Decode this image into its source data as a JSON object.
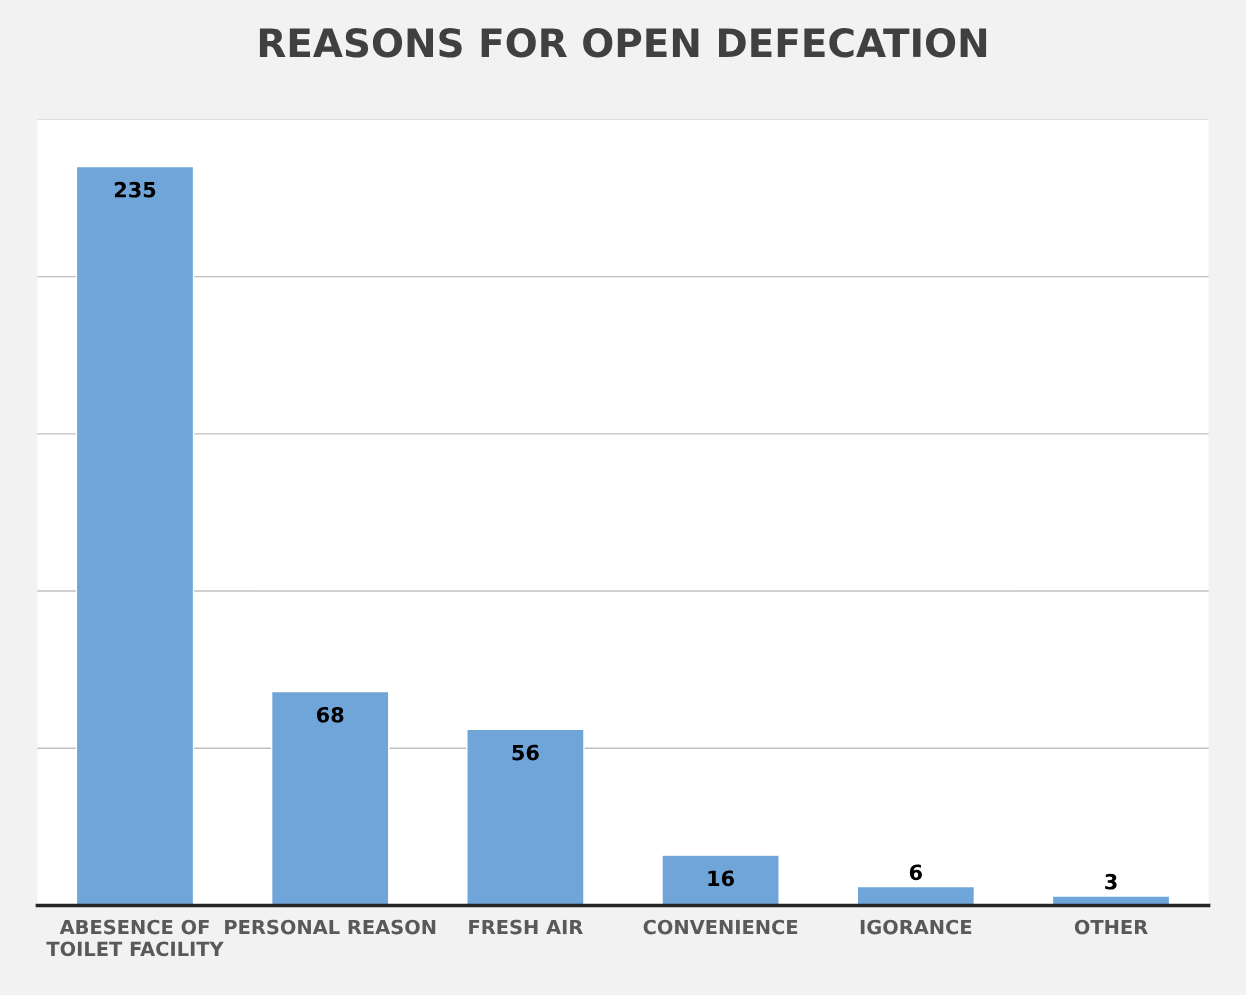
{
  "chart_data": {
    "type": "bar",
    "title": "REASONS FOR OPEN DEFECATION",
    "categories": [
      "ABESENCE OF\nTOILET FACILITY",
      "PERSONAL REASON",
      "FRESH AIR",
      "CONVENIENCE",
      "IGORANCE",
      "OTHER"
    ],
    "values": [
      235,
      68,
      56,
      16,
      6,
      3
    ],
    "color": "#6fa5d9",
    "ylim": [
      0,
      250
    ],
    "yticks": [
      {
        "value": 0,
        "label": null
      },
      {
        "value": 50,
        "label": null
      },
      {
        "value": 100,
        "label": null
      },
      {
        "value": 150,
        "label": null
      },
      {
        "value": 200,
        "label": null
      },
      {
        "value": 250,
        "label": null
      }
    ],
    "grid": "y",
    "tick_labels": "x",
    "data_labels": true
  }
}
